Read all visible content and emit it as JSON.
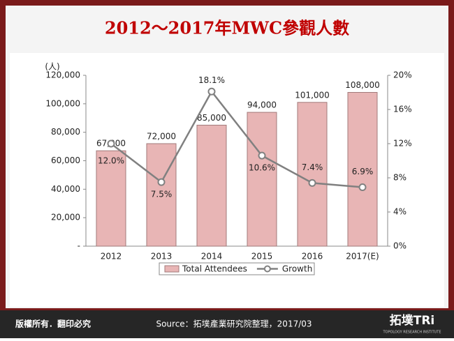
{
  "chart_data": {
    "type": "bar",
    "title": "2012～2017年MWC參觀人數",
    "y_unit": "(人)",
    "categories": [
      "2012",
      "2013",
      "2014",
      "2015",
      "2016",
      "2017(E)"
    ],
    "series": [
      {
        "name": "Total Attendees",
        "type": "bar",
        "color": "#e8b5b5",
        "values": [
          67000,
          72000,
          85000,
          94000,
          101000,
          108000
        ],
        "value_labels": [
          "67,000",
          "72,000",
          "85,000",
          "94,000",
          "101,000",
          "108,000"
        ]
      },
      {
        "name": "Growth",
        "type": "line",
        "axis": "y2",
        "color": "#808080",
        "values": [
          12.0,
          7.5,
          18.1,
          10.6,
          7.4,
          6.9
        ],
        "value_labels": [
          "12.0%",
          "7.5%",
          "18.1%",
          "10.6%",
          "7.4%",
          "6.9%"
        ]
      }
    ],
    "ylim": [
      0,
      120000
    ],
    "yticks": [
      {
        "value": 0,
        "label": "-"
      },
      {
        "value": 20000,
        "label": "20,000"
      },
      {
        "value": 40000,
        "label": "40,000"
      },
      {
        "value": 60000,
        "label": "60,000"
      },
      {
        "value": 80000,
        "label": "80,000"
      },
      {
        "value": 100000,
        "label": "100,000"
      },
      {
        "value": 120000,
        "label": "120,000"
      }
    ],
    "y2lim": [
      0,
      20
    ],
    "y2ticks": [
      {
        "value": 0,
        "label": "0%"
      },
      {
        "value": 4,
        "label": "4%"
      },
      {
        "value": 8,
        "label": "8%"
      },
      {
        "value": 12,
        "label": "12%"
      },
      {
        "value": 16,
        "label": "16%"
      },
      {
        "value": 20,
        "label": "20%"
      }
    ],
    "legend": "bottom"
  },
  "footer": {
    "rights": "版權所有．翻印必究",
    "source": "Source：拓墣產業研究院整理，2017/03",
    "logo": "拓墣TRi",
    "logo_sub": "TOPOLOGY RESEARCH INSTITUTE"
  }
}
